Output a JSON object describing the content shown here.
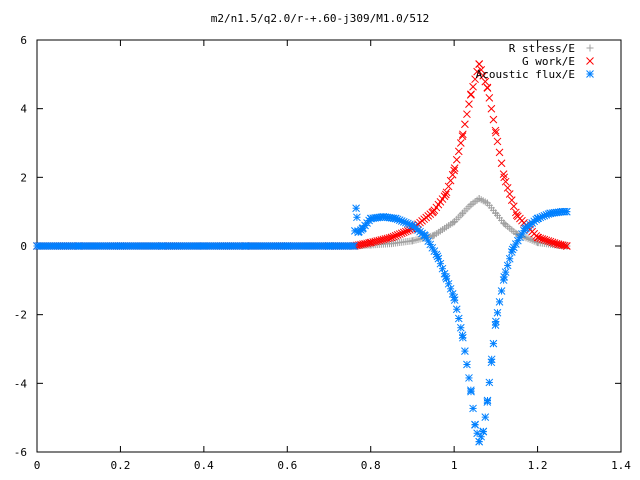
{
  "chart_data": {
    "type": "scatter",
    "title": "m2/n1.5/q2.0/r-+.60-j309/M1.0/512",
    "xlabel": "",
    "ylabel": "",
    "xlim": [
      0,
      1.4
    ],
    "ylim": [
      -6,
      6
    ],
    "x_ticks": [
      "0",
      "0.2",
      "0.4",
      "0.6",
      "0.8",
      "1",
      "1.2",
      "1.4"
    ],
    "y_ticks": [
      "6",
      "4",
      "2",
      "0",
      "-2",
      "-4",
      "-6"
    ],
    "grid": false,
    "legend_position": "top-right",
    "series": [
      {
        "name": "R stress/E",
        "marker": "plus",
        "color": "#a0a0a0",
        "x": [
          0.0,
          0.1,
          0.2,
          0.3,
          0.4,
          0.5,
          0.6,
          0.7,
          0.76,
          0.8,
          0.85,
          0.9,
          0.95,
          1.0,
          1.02,
          1.04,
          1.06,
          1.08,
          1.1,
          1.12,
          1.15,
          1.2,
          1.25,
          1.27
        ],
        "y": [
          0.0,
          0.0,
          0.0,
          0.0,
          0.0,
          0.0,
          0.0,
          0.0,
          0.0,
          0.03,
          0.07,
          0.15,
          0.3,
          0.7,
          0.95,
          1.2,
          1.38,
          1.25,
          0.95,
          0.65,
          0.35,
          0.1,
          0.02,
          0.0
        ]
      },
      {
        "name": "G work/E",
        "marker": "x",
        "color": "#ff0000",
        "x": [
          0.0,
          0.1,
          0.2,
          0.3,
          0.4,
          0.5,
          0.6,
          0.7,
          0.76,
          0.8,
          0.85,
          0.9,
          0.95,
          0.98,
          1.0,
          1.02,
          1.04,
          1.06,
          1.08,
          1.1,
          1.12,
          1.15,
          1.2,
          1.25,
          1.27
        ],
        "y": [
          0.0,
          0.0,
          0.0,
          0.0,
          0.0,
          0.0,
          0.0,
          0.0,
          0.0,
          0.1,
          0.25,
          0.5,
          1.0,
          1.5,
          2.2,
          3.2,
          4.4,
          5.3,
          4.6,
          3.3,
          2.0,
          0.9,
          0.25,
          0.05,
          0.0
        ]
      },
      {
        "name": "Acoustic flux/E",
        "marker": "star",
        "color": "#0080ff",
        "x": [
          0.0,
          0.1,
          0.2,
          0.3,
          0.4,
          0.5,
          0.6,
          0.7,
          0.76,
          0.765,
          0.77,
          0.78,
          0.8,
          0.83,
          0.86,
          0.9,
          0.93,
          0.96,
          0.98,
          1.0,
          1.02,
          1.04,
          1.05,
          1.06,
          1.07,
          1.08,
          1.09,
          1.1,
          1.12,
          1.14,
          1.17,
          1.2,
          1.23,
          1.26,
          1.27
        ],
        "y": [
          0.0,
          0.0,
          0.0,
          0.0,
          0.0,
          0.0,
          0.0,
          0.0,
          0.0,
          1.1,
          0.4,
          0.5,
          0.8,
          0.85,
          0.8,
          0.6,
          0.3,
          -0.3,
          -0.9,
          -1.5,
          -2.6,
          -4.2,
          -5.2,
          -5.7,
          -5.4,
          -4.5,
          -3.3,
          -2.2,
          -0.9,
          -0.1,
          0.5,
          0.8,
          0.95,
          1.0,
          1.0
        ]
      }
    ]
  }
}
